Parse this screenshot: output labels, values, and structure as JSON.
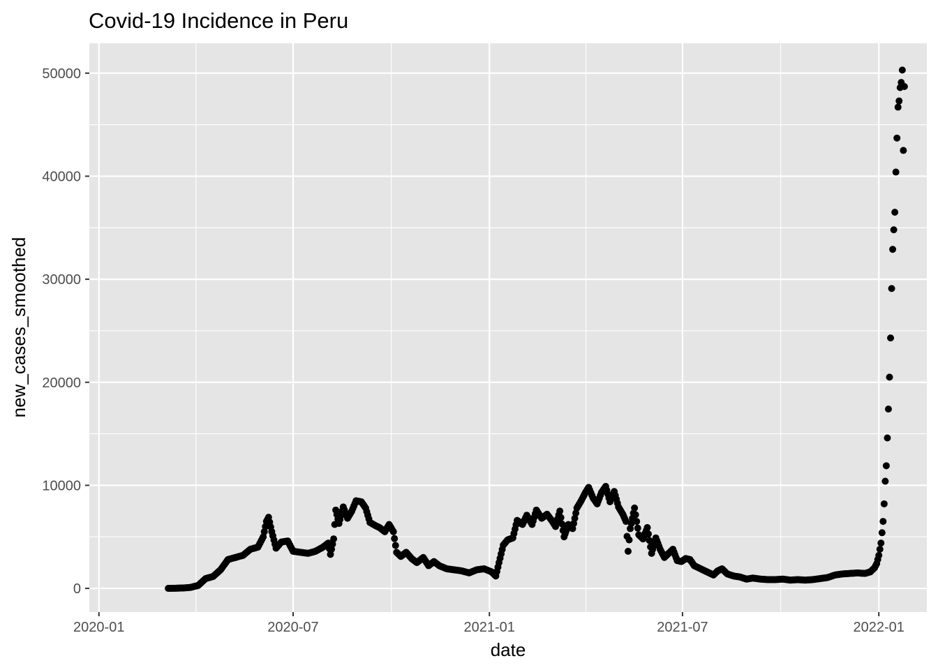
{
  "chart_data": {
    "type": "scatter",
    "title": "Covid-19 Incidence in Peru",
    "xlabel": "date",
    "ylabel": "new_cases_smoothed",
    "x_axis_type": "date",
    "xlim": [
      "2019-12-23",
      "2022-02-15"
    ],
    "ylim": [
      -2300,
      52900
    ],
    "x_ticks": [
      "2020-01-01",
      "2020-07-01",
      "2021-01-01",
      "2021-07-01",
      "2022-01-01"
    ],
    "x_tick_labels": [
      "2020-01",
      "2020-07",
      "2021-01",
      "2021-07",
      "2022-01"
    ],
    "y_ticks": [
      0,
      10000,
      20000,
      30000,
      40000,
      50000
    ],
    "y_tick_labels": [
      "0",
      "10000",
      "20000",
      "30000",
      "40000",
      "50000"
    ],
    "grid": true,
    "legend": "none",
    "colors": {
      "panel": "#e5e5e5",
      "grid": "#ffffff",
      "point": "#000000"
    },
    "series": [
      {
        "points": [
          [
            "2020-03-06",
            0
          ],
          [
            "2020-03-13",
            15
          ],
          [
            "2020-03-20",
            40
          ],
          [
            "2020-03-27",
            100
          ],
          [
            "2020-04-03",
            280
          ],
          [
            "2020-04-10",
            950
          ],
          [
            "2020-04-17",
            1150
          ],
          [
            "2020-04-24",
            1800
          ],
          [
            "2020-05-01",
            2800
          ],
          [
            "2020-05-08",
            3000
          ],
          [
            "2020-05-15",
            3200
          ],
          [
            "2020-05-22",
            3800
          ],
          [
            "2020-05-29",
            4000
          ],
          [
            "2020-06-03",
            5000
          ],
          [
            "2020-06-06",
            6500
          ],
          [
            "2020-06-08",
            6900
          ],
          [
            "2020-06-11",
            5500
          ],
          [
            "2020-06-15",
            3900
          ],
          [
            "2020-06-20",
            4500
          ],
          [
            "2020-06-26",
            4600
          ],
          [
            "2020-07-01",
            3600
          ],
          [
            "2020-07-08",
            3500
          ],
          [
            "2020-07-15",
            3400
          ],
          [
            "2020-07-22",
            3600
          ],
          [
            "2020-07-29",
            4000
          ],
          [
            "2020-08-03",
            4400
          ],
          [
            "2020-08-05",
            3300
          ],
          [
            "2020-08-08",
            4800
          ],
          [
            "2020-08-10",
            7600
          ],
          [
            "2020-08-13",
            6300
          ],
          [
            "2020-08-17",
            7900
          ],
          [
            "2020-08-21",
            6800
          ],
          [
            "2020-08-25",
            7500
          ],
          [
            "2020-08-29",
            8500
          ],
          [
            "2020-09-03",
            8400
          ],
          [
            "2020-09-07",
            7800
          ],
          [
            "2020-09-11",
            6400
          ],
          [
            "2020-09-16",
            6100
          ],
          [
            "2020-09-20",
            5900
          ],
          [
            "2020-09-25",
            5500
          ],
          [
            "2020-09-29",
            6200
          ],
          [
            "2020-10-03",
            5500
          ],
          [
            "2020-10-06",
            3500
          ],
          [
            "2020-10-10",
            3100
          ],
          [
            "2020-10-15",
            3500
          ],
          [
            "2020-10-20",
            2900
          ],
          [
            "2020-10-25",
            2500
          ],
          [
            "2020-10-31",
            3000
          ],
          [
            "2020-11-05",
            2200
          ],
          [
            "2020-11-10",
            2600
          ],
          [
            "2020-11-15",
            2200
          ],
          [
            "2020-11-22",
            1900
          ],
          [
            "2020-11-29",
            1800
          ],
          [
            "2020-12-06",
            1700
          ],
          [
            "2020-12-13",
            1500
          ],
          [
            "2020-12-20",
            1800
          ],
          [
            "2020-12-27",
            1900
          ],
          [
            "2021-01-03",
            1600
          ],
          [
            "2021-01-07",
            1200
          ],
          [
            "2021-01-10",
            2500
          ],
          [
            "2021-01-14",
            4200
          ],
          [
            "2021-01-18",
            4700
          ],
          [
            "2021-01-23",
            4900
          ],
          [
            "2021-01-27",
            6600
          ],
          [
            "2021-02-01",
            6200
          ],
          [
            "2021-02-05",
            7100
          ],
          [
            "2021-02-10",
            6200
          ],
          [
            "2021-02-14",
            7600
          ],
          [
            "2021-02-19",
            6800
          ],
          [
            "2021-02-24",
            7200
          ],
          [
            "2021-03-01",
            6500
          ],
          [
            "2021-03-04",
            6000
          ],
          [
            "2021-03-08",
            7500
          ],
          [
            "2021-03-12",
            5000
          ],
          [
            "2021-03-16",
            6200
          ],
          [
            "2021-03-20",
            5800
          ],
          [
            "2021-03-24",
            7800
          ],
          [
            "2021-03-28",
            8500
          ],
          [
            "2021-04-01",
            9300
          ],
          [
            "2021-04-04",
            9800
          ],
          [
            "2021-04-08",
            8800
          ],
          [
            "2021-04-12",
            8200
          ],
          [
            "2021-04-16",
            9300
          ],
          [
            "2021-04-20",
            9900
          ],
          [
            "2021-04-24",
            8400
          ],
          [
            "2021-04-28",
            9400
          ],
          [
            "2021-05-02",
            7900
          ],
          [
            "2021-05-06",
            7200
          ],
          [
            "2021-05-09",
            6500
          ],
          [
            "2021-05-11",
            3600
          ],
          [
            "2021-05-13",
            5800
          ],
          [
            "2021-05-17",
            7800
          ],
          [
            "2021-05-21",
            5200
          ],
          [
            "2021-05-25",
            4800
          ],
          [
            "2021-05-29",
            5900
          ],
          [
            "2021-06-02",
            3400
          ],
          [
            "2021-06-06",
            4900
          ],
          [
            "2021-06-10",
            3800
          ],
          [
            "2021-06-14",
            3000
          ],
          [
            "2021-06-18",
            3400
          ],
          [
            "2021-06-22",
            3800
          ],
          [
            "2021-06-26",
            2700
          ],
          [
            "2021-06-30",
            2600
          ],
          [
            "2021-07-04",
            2900
          ],
          [
            "2021-07-08",
            2800
          ],
          [
            "2021-07-12",
            2200
          ],
          [
            "2021-07-18",
            1900
          ],
          [
            "2021-07-24",
            1600
          ],
          [
            "2021-07-30",
            1300
          ],
          [
            "2021-08-03",
            1700
          ],
          [
            "2021-08-07",
            1900
          ],
          [
            "2021-08-12",
            1400
          ],
          [
            "2021-08-18",
            1200
          ],
          [
            "2021-08-24",
            1100
          ],
          [
            "2021-08-30",
            900
          ],
          [
            "2021-09-05",
            1000
          ],
          [
            "2021-09-12",
            900
          ],
          [
            "2021-09-19",
            850
          ],
          [
            "2021-09-26",
            850
          ],
          [
            "2021-10-03",
            900
          ],
          [
            "2021-10-10",
            800
          ],
          [
            "2021-10-17",
            850
          ],
          [
            "2021-10-24",
            800
          ],
          [
            "2021-10-31",
            850
          ],
          [
            "2021-11-07",
            950
          ],
          [
            "2021-11-14",
            1050
          ],
          [
            "2021-11-21",
            1300
          ],
          [
            "2021-11-28",
            1400
          ],
          [
            "2021-12-05",
            1450
          ],
          [
            "2021-12-12",
            1500
          ],
          [
            "2021-12-19",
            1450
          ],
          [
            "2021-12-24",
            1600
          ],
          [
            "2021-12-28",
            2000
          ],
          [
            "2021-12-30",
            2400
          ],
          [
            "2022-01-01",
            3200
          ],
          [
            "2022-01-03",
            4400
          ],
          [
            "2022-01-04",
            5400
          ],
          [
            "2022-01-05",
            6500
          ],
          [
            "2022-01-06",
            8200
          ],
          [
            "2022-01-07",
            10400
          ],
          [
            "2022-01-08",
            11900
          ],
          [
            "2022-01-09",
            14600
          ],
          [
            "2022-01-10",
            17400
          ],
          [
            "2022-01-11",
            20500
          ],
          [
            "2022-01-12",
            24300
          ],
          [
            "2022-01-13",
            29100
          ],
          [
            "2022-01-14",
            32900
          ],
          [
            "2022-01-15",
            34800
          ],
          [
            "2022-01-16",
            36500
          ],
          [
            "2022-01-17",
            40400
          ],
          [
            "2022-01-18",
            43700
          ],
          [
            "2022-01-19",
            46700
          ],
          [
            "2022-01-20",
            47300
          ],
          [
            "2022-01-21",
            48600
          ],
          [
            "2022-01-22",
            49100
          ],
          [
            "2022-01-23",
            50300
          ],
          [
            "2022-01-24",
            42500
          ],
          [
            "2022-01-25",
            48700
          ]
        ]
      }
    ]
  }
}
